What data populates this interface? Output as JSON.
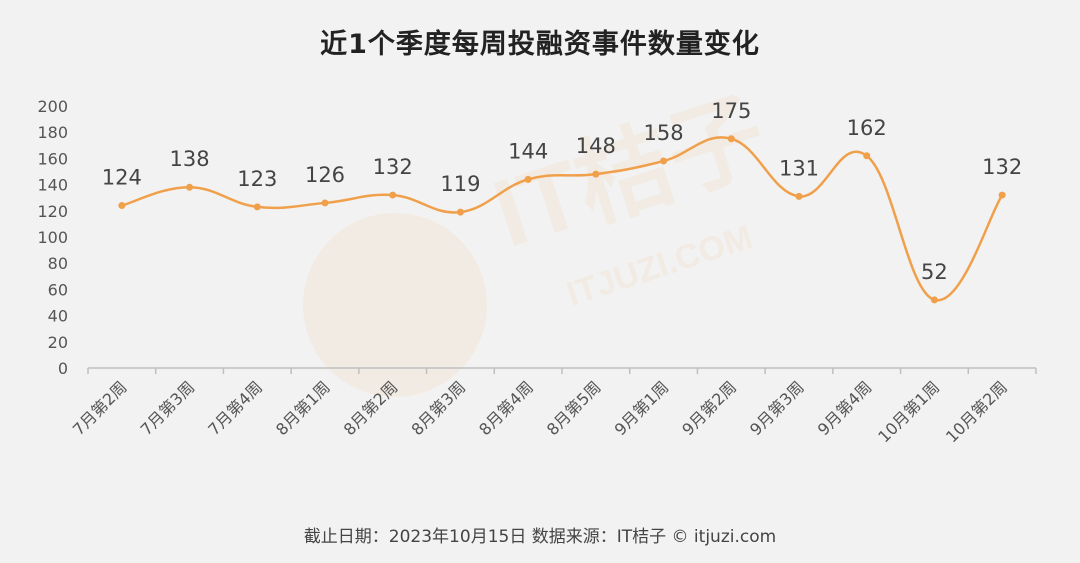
{
  "title": "近1个季度每周投融资事件数量变化",
  "footer": "截止日期：2023年10月15日    数据来源：IT桔子 © itjuzi.com",
  "watermark": {
    "brand": "IT桔子",
    "url": "ITJUZI.COM"
  },
  "colors": {
    "line": "#f0a04b",
    "background": "#f2f2f2",
    "axis": "#bfbfbf"
  },
  "chart_data": {
    "type": "line",
    "title": "近1个季度每周投融资事件数量变化",
    "categories": [
      "7月第2周",
      "7月第3周",
      "7月第4周",
      "8月第1周",
      "8月第2周",
      "8月第3周",
      "8月第4周",
      "8月第5周",
      "9月第1周",
      "9月第2周",
      "9月第3周",
      "9月第4周",
      "10月第1周",
      "10月第2周"
    ],
    "values": [
      124,
      138,
      123,
      126,
      132,
      119,
      144,
      148,
      158,
      175,
      131,
      162,
      52,
      132
    ],
    "ylim": [
      0,
      200
    ],
    "yticks": [
      0,
      20,
      40,
      60,
      80,
      100,
      120,
      140,
      160,
      180,
      200
    ],
    "smooth": true,
    "grid": false,
    "legend": "none",
    "data_labels": true
  }
}
